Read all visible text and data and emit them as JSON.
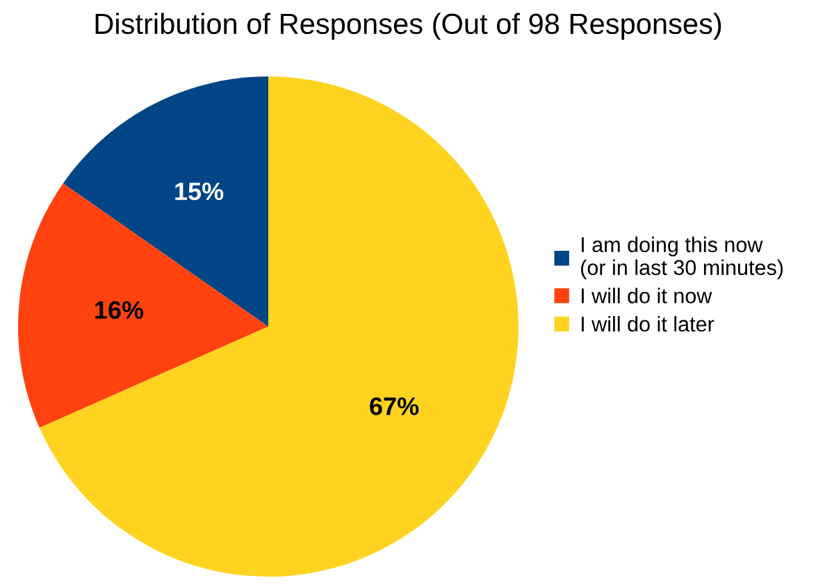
{
  "chart_data": {
    "type": "pie",
    "title": "Distribution of Responses (Out of 98 Responses)",
    "categories": [
      "I am doing this now\n(or in last 30 minutes)",
      "I will do it now",
      "I will do it later"
    ],
    "values": [
      15,
      16,
      67
    ],
    "colors": [
      "#004586",
      "#ff420e",
      "#ffd320"
    ],
    "value_labels": [
      "15%",
      "16%",
      "67%"
    ],
    "legend": "right"
  }
}
